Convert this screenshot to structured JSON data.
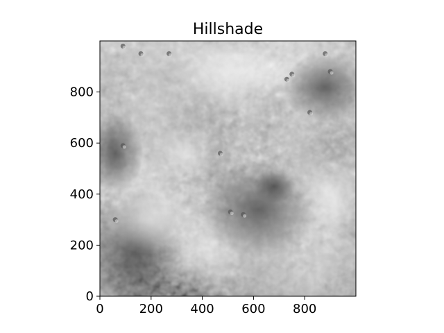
{
  "chart_data": {
    "type": "heatmap",
    "title": "Hillshade",
    "xlabel": "",
    "ylabel": "",
    "colormap": "gray",
    "xlim": [
      0,
      1000
    ],
    "ylim": [
      0,
      1000
    ],
    "x_ticks": [
      0,
      200,
      400,
      600,
      800
    ],
    "y_ticks": [
      0,
      200,
      400,
      600,
      800
    ],
    "x_tick_labels": [
      "0",
      "200",
      "400",
      "600",
      "800"
    ],
    "y_tick_labels": [
      "0",
      "200",
      "400",
      "600",
      "800"
    ],
    "grid": false,
    "colors": {
      "frame": "#000000",
      "shade_light": "#d8d8d8",
      "shade_mid": "#a8a8a8",
      "shade_dark": "#555555"
    }
  }
}
